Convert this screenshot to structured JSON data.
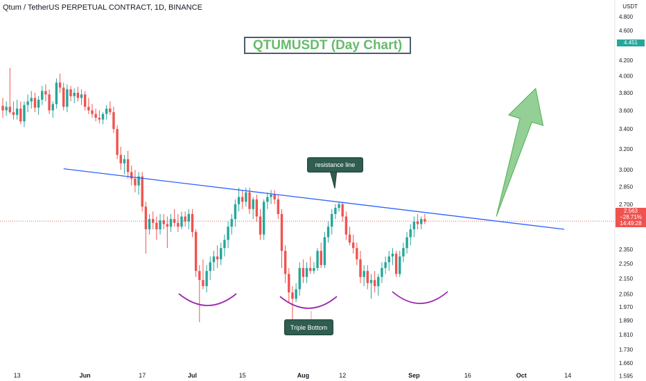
{
  "header": {
    "symbol_title": "Qtum / TetherUS PERPETUAL CONTRACT, 1D, BINANCE"
  },
  "chart_title": "QTUMUSDT (Day Chart)",
  "annotations": {
    "resistance": "resistance line",
    "triple_bottom": "Triple Bottom"
  },
  "price_axis": {
    "unit": "USDT",
    "ticks": [
      "4.800",
      "4.600",
      "4.200",
      "4.000",
      "3.800",
      "3.600",
      "3.400",
      "3.200",
      "3.000",
      "2.850",
      "2.700",
      "2.350",
      "2.250",
      "2.150",
      "2.050",
      "1.970",
      "1.890",
      "1.810",
      "1.730",
      "1.660",
      "1.595"
    ],
    "ref_badge": "4.451",
    "current": {
      "price": "2.563",
      "change": "−28.71%",
      "timer": "14:49:28"
    }
  },
  "time_axis": {
    "ticks": [
      "13",
      "Jun",
      "17",
      "Jul",
      "15",
      "Aug",
      "12",
      "Sep",
      "16",
      "Oct",
      "14"
    ]
  },
  "colors": {
    "up": "#26a69a",
    "down": "#ef5350",
    "resistance": "#2962ff",
    "arc": "#9c27b0",
    "arrow": "#81c784",
    "current": "#ef5350",
    "ref": "#26a69a"
  },
  "chart_data": {
    "type": "candlestick",
    "title": "QTUMUSDT (Day Chart)",
    "ylabel": "USDT",
    "ylim": [
      1.57,
      5.05
    ],
    "y_scale": "log",
    "period": "1D",
    "start_date": "2024-05-09",
    "ohlc": [
      [
        3.65,
        3.74,
        3.52,
        3.6
      ],
      [
        3.6,
        3.7,
        3.54,
        3.64
      ],
      [
        3.64,
        4.1,
        3.56,
        3.58
      ],
      [
        3.58,
        3.7,
        3.5,
        3.55
      ],
      [
        3.55,
        3.72,
        3.5,
        3.62
      ],
      [
        3.62,
        3.7,
        3.45,
        3.48
      ],
      [
        3.48,
        3.7,
        3.42,
        3.66
      ],
      [
        3.66,
        3.78,
        3.58,
        3.7
      ],
      [
        3.7,
        3.82,
        3.62,
        3.74
      ],
      [
        3.74,
        3.8,
        3.58,
        3.63
      ],
      [
        3.63,
        3.76,
        3.55,
        3.72
      ],
      [
        3.72,
        3.88,
        3.66,
        3.82
      ],
      [
        3.82,
        3.9,
        3.7,
        3.78
      ],
      [
        3.78,
        3.84,
        3.56,
        3.6
      ],
      [
        3.6,
        3.7,
        3.52,
        3.67
      ],
      [
        3.67,
        3.97,
        3.62,
        3.92
      ],
      [
        3.92,
        4.03,
        3.8,
        3.86
      ],
      [
        3.86,
        3.92,
        3.6,
        3.64
      ],
      [
        3.64,
        3.9,
        3.58,
        3.84
      ],
      [
        3.84,
        3.88,
        3.7,
        3.76
      ],
      [
        3.76,
        3.85,
        3.68,
        3.8
      ],
      [
        3.8,
        3.87,
        3.7,
        3.74
      ],
      [
        3.74,
        3.84,
        3.66,
        3.78
      ],
      [
        3.78,
        3.82,
        3.6,
        3.64
      ],
      [
        3.64,
        3.74,
        3.56,
        3.6
      ],
      [
        3.6,
        3.67,
        3.52,
        3.56
      ],
      [
        3.56,
        3.62,
        3.48,
        3.52
      ],
      [
        3.52,
        3.6,
        3.46,
        3.5
      ],
      [
        3.5,
        3.58,
        3.45,
        3.56
      ],
      [
        3.56,
        3.66,
        3.5,
        3.62
      ],
      [
        3.62,
        3.7,
        3.55,
        3.58
      ],
      [
        3.58,
        3.64,
        3.36,
        3.4
      ],
      [
        3.4,
        3.44,
        3.1,
        3.14
      ],
      [
        3.14,
        3.22,
        3.0,
        3.06
      ],
      [
        3.06,
        3.14,
        2.96,
        3.1
      ],
      [
        3.1,
        3.18,
        2.92,
        2.98
      ],
      [
        2.98,
        3.04,
        2.86,
        2.92
      ],
      [
        2.92,
        3.0,
        2.8,
        2.86
      ],
      [
        2.86,
        2.98,
        2.78,
        2.94
      ],
      [
        2.94,
        2.98,
        2.64,
        2.68
      ],
      [
        2.68,
        2.72,
        2.32,
        2.5
      ],
      [
        2.5,
        2.62,
        2.46,
        2.58
      ],
      [
        2.58,
        2.64,
        2.5,
        2.55
      ],
      [
        2.55,
        2.6,
        2.42,
        2.5
      ],
      [
        2.5,
        2.62,
        2.46,
        2.57
      ],
      [
        2.57,
        2.62,
        2.5,
        2.54
      ],
      [
        2.54,
        2.6,
        2.36,
        2.52
      ],
      [
        2.52,
        2.62,
        2.48,
        2.58
      ],
      [
        2.58,
        2.66,
        2.52,
        2.55
      ],
      [
        2.55,
        2.62,
        2.48,
        2.52
      ],
      [
        2.52,
        2.64,
        2.5,
        2.6
      ],
      [
        2.6,
        2.64,
        2.52,
        2.56
      ],
      [
        2.56,
        2.66,
        2.5,
        2.62
      ],
      [
        2.62,
        2.66,
        2.44,
        2.48
      ],
      [
        2.48,
        2.5,
        2.16,
        2.2
      ],
      [
        2.2,
        2.24,
        1.88,
        2.14
      ],
      [
        2.14,
        2.28,
        2.08,
        2.1
      ],
      [
        2.1,
        2.24,
        2.06,
        2.2
      ],
      [
        2.2,
        2.3,
        2.14,
        2.26
      ],
      [
        2.26,
        2.34,
        2.2,
        2.3
      ],
      [
        2.3,
        2.38,
        2.22,
        2.28
      ],
      [
        2.28,
        2.4,
        2.24,
        2.36
      ],
      [
        2.36,
        2.46,
        2.3,
        2.42
      ],
      [
        2.42,
        2.56,
        2.36,
        2.52
      ],
      [
        2.52,
        2.62,
        2.46,
        2.58
      ],
      [
        2.58,
        2.74,
        2.52,
        2.7
      ],
      [
        2.7,
        2.84,
        2.64,
        2.76
      ],
      [
        2.76,
        2.82,
        2.66,
        2.72
      ],
      [
        2.72,
        2.84,
        2.68,
        2.8
      ],
      [
        2.8,
        2.84,
        2.62,
        2.66
      ],
      [
        2.66,
        2.76,
        2.58,
        2.74
      ],
      [
        2.74,
        2.78,
        2.56,
        2.6
      ],
      [
        2.6,
        2.66,
        2.42,
        2.46
      ],
      [
        2.46,
        2.74,
        2.42,
        2.72
      ],
      [
        2.72,
        2.8,
        2.66,
        2.76
      ],
      [
        2.76,
        2.82,
        2.7,
        2.78
      ],
      [
        2.78,
        2.82,
        2.7,
        2.74
      ],
      [
        2.74,
        2.78,
        2.58,
        2.62
      ],
      [
        2.62,
        2.66,
        2.22,
        2.34
      ],
      [
        2.34,
        2.38,
        2.12,
        2.18
      ],
      [
        2.18,
        2.22,
        2.0,
        2.06
      ],
      [
        2.06,
        2.1,
        1.86,
        2.02
      ],
      [
        2.02,
        2.12,
        2.0,
        2.08
      ],
      [
        2.08,
        2.26,
        2.04,
        2.22
      ],
      [
        2.22,
        2.28,
        2.12,
        2.16
      ],
      [
        2.16,
        2.26,
        2.12,
        2.22
      ],
      [
        2.22,
        2.3,
        2.18,
        2.2
      ],
      [
        2.2,
        2.26,
        2.18,
        2.22
      ],
      [
        2.22,
        2.36,
        2.2,
        2.34
      ],
      [
        2.34,
        2.4,
        2.22,
        2.24
      ],
      [
        2.24,
        2.48,
        2.22,
        2.44
      ],
      [
        2.44,
        2.56,
        2.4,
        2.52
      ],
      [
        2.52,
        2.66,
        2.46,
        2.62
      ],
      [
        2.62,
        2.7,
        2.58,
        2.67
      ],
      [
        2.67,
        2.72,
        2.64,
        2.7
      ],
      [
        2.7,
        2.72,
        2.56,
        2.6
      ],
      [
        2.6,
        2.64,
        2.42,
        2.46
      ],
      [
        2.46,
        2.52,
        2.38,
        2.4
      ],
      [
        2.4,
        2.46,
        2.32,
        2.36
      ],
      [
        2.36,
        2.4,
        2.24,
        2.28
      ],
      [
        2.28,
        2.34,
        2.12,
        2.16
      ],
      [
        2.16,
        2.24,
        2.1,
        2.2
      ],
      [
        2.2,
        2.24,
        2.08,
        2.12
      ],
      [
        2.12,
        2.18,
        2.02,
        2.14
      ],
      [
        2.14,
        2.2,
        2.06,
        2.1
      ],
      [
        2.1,
        2.18,
        2.04,
        2.16
      ],
      [
        2.16,
        2.26,
        2.12,
        2.22
      ],
      [
        2.22,
        2.3,
        2.18,
        2.26
      ],
      [
        2.26,
        2.34,
        2.2,
        2.3
      ],
      [
        2.3,
        2.36,
        2.24,
        2.32
      ],
      [
        2.32,
        2.34,
        2.16,
        2.18
      ],
      [
        2.18,
        2.34,
        2.16,
        2.3
      ],
      [
        2.3,
        2.4,
        2.26,
        2.36
      ],
      [
        2.36,
        2.48,
        2.32,
        2.44
      ],
      [
        2.44,
        2.54,
        2.38,
        2.5
      ],
      [
        2.5,
        2.6,
        2.44,
        2.56
      ],
      [
        2.56,
        2.62,
        2.5,
        2.54
      ],
      [
        2.54,
        2.6,
        2.5,
        2.58
      ],
      [
        2.58,
        2.62,
        2.54,
        2.56
      ]
    ],
    "resistance_line": {
      "x": [
        "2024-05-26",
        "2024-10-13"
      ],
      "y": [
        3.01,
        2.5
      ]
    },
    "target_arrow": {
      "x": [
        "2024-09-24",
        "2024-10-05"
      ],
      "y": [
        2.6,
        3.85
      ]
    },
    "annotations": [
      "resistance line",
      "Triple Bottom"
    ]
  }
}
